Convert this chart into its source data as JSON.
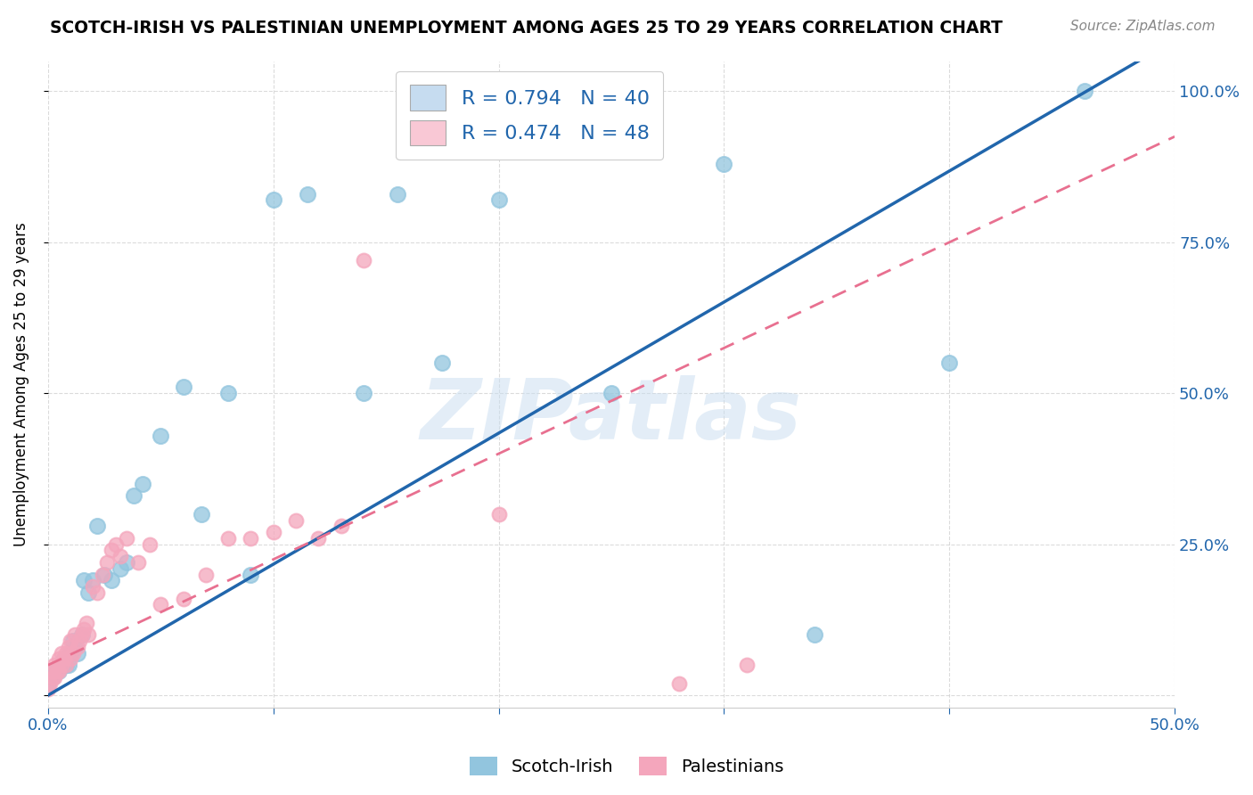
{
  "title": "SCOTCH-IRISH VS PALESTINIAN UNEMPLOYMENT AMONG AGES 25 TO 29 YEARS CORRELATION CHART",
  "source": "Source: ZipAtlas.com",
  "ylabel": "Unemployment Among Ages 25 to 29 years",
  "xlim": [
    0.0,
    0.5
  ],
  "ylim": [
    -0.02,
    1.05
  ],
  "scotch_irish_color": "#92c5de",
  "palestinian_color": "#f4a6bc",
  "scotch_irish_line_color": "#2166ac",
  "palestinian_line_color": "#e87090",
  "legend_box_color_scotch": "#c6dcf0",
  "legend_box_color_palestinian": "#f9c8d5",
  "R_scotch": 0.794,
  "N_scotch": 40,
  "R_palestinian": 0.474,
  "N_palestinian": 48,
  "watermark_text": "ZIPatlas",
  "background_color": "#ffffff",
  "grid_color": "#cccccc",
  "si_x": [
    0.0,
    0.002,
    0.003,
    0.005,
    0.006,
    0.007,
    0.008,
    0.009,
    0.01,
    0.011,
    0.012,
    0.013,
    0.015,
    0.016,
    0.018,
    0.02,
    0.022,
    0.025,
    0.028,
    0.032,
    0.035,
    0.038,
    0.042,
    0.05,
    0.06,
    0.068,
    0.08,
    0.09,
    0.1,
    0.115,
    0.14,
    0.155,
    0.175,
    0.2,
    0.22,
    0.25,
    0.3,
    0.34,
    0.4,
    0.46
  ],
  "si_y": [
    0.02,
    0.03,
    0.04,
    0.04,
    0.05,
    0.06,
    0.05,
    0.05,
    0.07,
    0.09,
    0.08,
    0.07,
    0.1,
    0.19,
    0.17,
    0.19,
    0.28,
    0.2,
    0.19,
    0.21,
    0.22,
    0.33,
    0.35,
    0.43,
    0.51,
    0.3,
    0.5,
    0.2,
    0.82,
    0.83,
    0.5,
    0.83,
    0.55,
    0.82,
    0.92,
    0.5,
    0.88,
    0.1,
    0.55,
    1.0
  ],
  "pal_x": [
    0.0,
    0.001,
    0.002,
    0.002,
    0.003,
    0.003,
    0.004,
    0.005,
    0.005,
    0.006,
    0.006,
    0.007,
    0.008,
    0.008,
    0.009,
    0.01,
    0.01,
    0.011,
    0.012,
    0.013,
    0.014,
    0.015,
    0.016,
    0.017,
    0.018,
    0.02,
    0.022,
    0.024,
    0.026,
    0.028,
    0.03,
    0.032,
    0.035,
    0.04,
    0.045,
    0.05,
    0.06,
    0.07,
    0.08,
    0.09,
    0.1,
    0.11,
    0.12,
    0.13,
    0.14,
    0.2,
    0.28,
    0.31
  ],
  "pal_y": [
    0.01,
    0.02,
    0.03,
    0.04,
    0.03,
    0.05,
    0.04,
    0.04,
    0.06,
    0.05,
    0.07,
    0.06,
    0.05,
    0.07,
    0.08,
    0.06,
    0.09,
    0.07,
    0.1,
    0.08,
    0.09,
    0.1,
    0.11,
    0.12,
    0.1,
    0.18,
    0.17,
    0.2,
    0.22,
    0.24,
    0.25,
    0.23,
    0.26,
    0.22,
    0.25,
    0.15,
    0.16,
    0.2,
    0.26,
    0.26,
    0.27,
    0.29,
    0.26,
    0.28,
    0.72,
    0.3,
    0.02,
    0.05
  ]
}
